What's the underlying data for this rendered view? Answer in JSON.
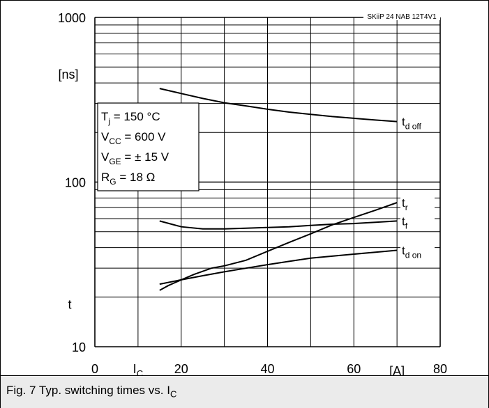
{
  "chart_data": {
    "type": "line",
    "title": "SKiiP 24 NAB 12T4V1",
    "y_scale": "log",
    "ylim": [
      10,
      1000
    ],
    "xlim": [
      0,
      80
    ],
    "x_ticks": [
      "0",
      "20",
      "40",
      "60",
      "80"
    ],
    "x_unit": "[A]",
    "x_symbol": "I",
    "x_symbol_sub": "C",
    "y_ticks": [
      "10",
      "100",
      "1000"
    ],
    "y_unit": "[ns]",
    "y_symbol": "t",
    "grid": true,
    "conditions": [
      {
        "sym": "T",
        "sub": "j",
        "value": "  = 150 °C"
      },
      {
        "sym": "V",
        "sub": "CC",
        "value": " = 600 V"
      },
      {
        "sym": "V",
        "sub": "GE",
        "value": " = ± 15 V"
      },
      {
        "sym": "R",
        "sub": "G",
        "value": "  = 18 Ω"
      }
    ],
    "series": [
      {
        "name": "t",
        "sub": "d off",
        "x": [
          15,
          20,
          25,
          30,
          35,
          40,
          45,
          50,
          55,
          60,
          65,
          70
        ],
        "y": [
          370,
          345,
          322,
          303,
          290,
          277,
          266,
          258,
          250,
          244,
          238,
          233
        ]
      },
      {
        "name": "t",
        "sub": "r",
        "x": [
          15,
          17,
          20,
          23,
          27,
          30,
          35,
          40,
          45,
          50,
          55,
          60,
          65,
          70
        ],
        "y": [
          22,
          23.5,
          25.5,
          27.5,
          30,
          31,
          33.5,
          38,
          43,
          48.5,
          55,
          61,
          67.5,
          75
        ]
      },
      {
        "name": "t",
        "sub": "f",
        "x": [
          15,
          20,
          25,
          30,
          35,
          40,
          45,
          50,
          55,
          60,
          65,
          70
        ],
        "y": [
          58,
          53.5,
          52,
          52,
          52.5,
          53,
          53.5,
          54.5,
          55.5,
          56,
          57,
          58
        ]
      },
      {
        "name": "t",
        "sub": "d on",
        "x": [
          15,
          20,
          25,
          30,
          35,
          40,
          45,
          50,
          55,
          60,
          65,
          70
        ],
        "y": [
          24,
          25.5,
          27,
          28.5,
          30,
          31.5,
          33,
          34.5,
          35.5,
          36.5,
          37.5,
          38.5
        ]
      }
    ]
  },
  "caption": {
    "text": "Fig. 7 Typ. switching times vs. I",
    "sub": "C"
  }
}
